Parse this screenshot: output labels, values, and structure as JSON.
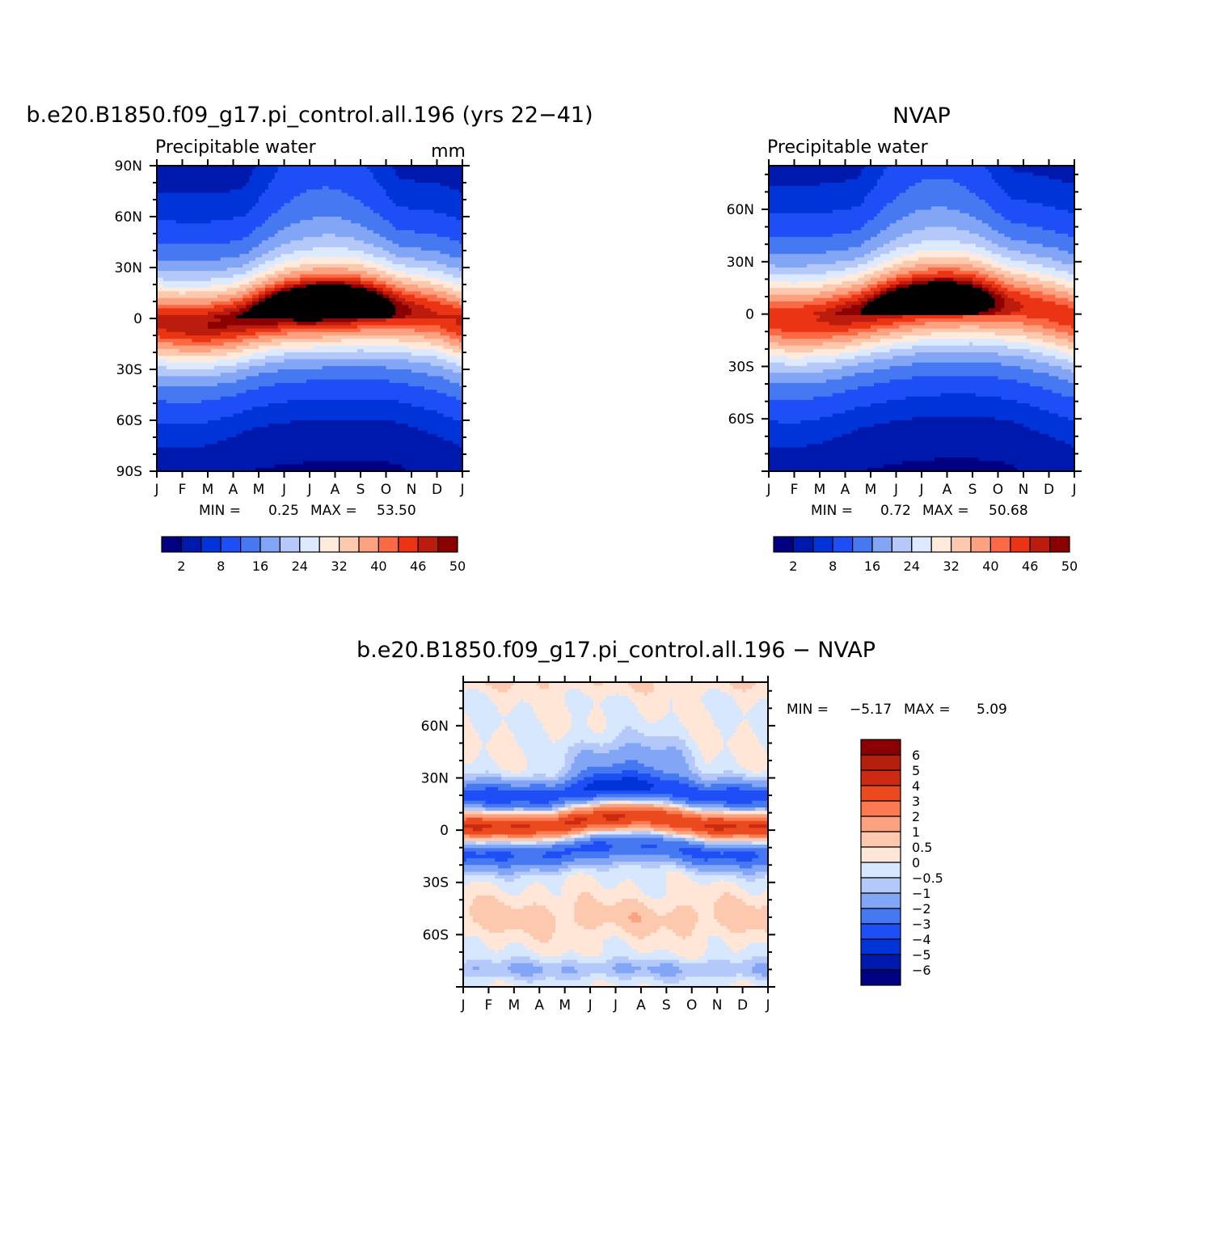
{
  "colors": {
    "pw_scale": [
      "#000080",
      "#0019ad",
      "#0034d9",
      "#1e4ef5",
      "#4678f2",
      "#82a5f5",
      "#b4c8fa",
      "#dce9ff",
      "#ffeadb",
      "#fcc8ae",
      "#fca281",
      "#fb6a45",
      "#ea3414",
      "#bb1c0d",
      "#8b0000"
    ],
    "diff_scale": [
      "#000080",
      "#0019ad",
      "#0034d9",
      "#1e4ef5",
      "#4678f2",
      "#82a5f5",
      "#b4c8fa",
      "#d7e7fd",
      "#ffe6d6",
      "#fcc8ae",
      "#fca281",
      "#fb7a4f",
      "#ea4a1e",
      "#cb2b10",
      "#b4200b",
      "#8b0000"
    ]
  },
  "chart_data": [
    {
      "type": "heatmap",
      "title": "b.e20.B1850.f09_g17.pi_control.all.196 (yrs 22-41)",
      "subtitle": "Precipitable water",
      "units": "mm",
      "x": [
        "J",
        "F",
        "M",
        "A",
        "M",
        "J",
        "J",
        "A",
        "S",
        "O",
        "N",
        "D",
        "J"
      ],
      "y_ticks": [
        "90N",
        "60N",
        "30N",
        "0",
        "30S",
        "60S",
        "90S"
      ],
      "ylim": [
        -90,
        90
      ],
      "min_label": "MIN =",
      "min_value": "0.25",
      "max_label": "MAX =",
      "max_value": "53.50",
      "stats": {
        "min": 0.25,
        "max": 53.5
      },
      "itcz_lat": [
        -3,
        -4,
        -4,
        -2,
        2,
        5,
        6,
        7,
        7,
        6,
        4,
        2,
        -3
      ],
      "itcz_max": [
        44,
        45,
        46,
        47,
        49,
        51,
        53,
        53,
        51,
        48,
        45,
        43,
        44
      ],
      "levels": [
        2,
        5,
        8,
        12,
        16,
        20,
        24,
        28,
        32,
        36,
        40,
        43,
        46,
        48,
        50
      ],
      "colorbar_labels": [
        "2",
        "8",
        "16",
        "24",
        "32",
        "40",
        "46",
        "50"
      ]
    },
    {
      "type": "heatmap",
      "title": "NVAP",
      "subtitle": "Precipitable water",
      "x": [
        "J",
        "F",
        "M",
        "A",
        "M",
        "J",
        "J",
        "A",
        "S",
        "O",
        "N",
        "D",
        "J"
      ],
      "y_ticks": [
        "60N",
        "30N",
        "0",
        "30S",
        "60S"
      ],
      "ylim": [
        -90,
        90
      ],
      "min_label": "MIN =",
      "min_value": "0.72",
      "max_label": "MAX =",
      "max_value": "50.68",
      "stats": {
        "min": 0.72,
        "max": 50.68
      },
      "itcz_lat": [
        -3,
        -4,
        -3,
        -1,
        2,
        5,
        7,
        8,
        8,
        6,
        4,
        1,
        -3
      ],
      "itcz_max": [
        42,
        43,
        44,
        46,
        47,
        48,
        48,
        48,
        47,
        45,
        43,
        42,
        42
      ],
      "levels": [
        2,
        5,
        8,
        12,
        16,
        20,
        24,
        28,
        32,
        36,
        40,
        43,
        46,
        48,
        50
      ],
      "colorbar_labels": [
        "2",
        "8",
        "16",
        "24",
        "32",
        "40",
        "46",
        "50"
      ]
    },
    {
      "type": "heatmap",
      "title": "b.e20.B1850.f09_g17.pi_control.all.196 - NVAP",
      "x": [
        "J",
        "F",
        "M",
        "A",
        "M",
        "J",
        "J",
        "A",
        "S",
        "O",
        "N",
        "D",
        "J"
      ],
      "y_ticks": [
        "60N",
        "30N",
        "0",
        "30S",
        "60S"
      ],
      "ylim": [
        -90,
        90
      ],
      "min_label": "MIN =",
      "min_value": "-5.17",
      "max_label": "MAX =",
      "max_value": "5.09",
      "stats": {
        "min": -5.17,
        "max": 5.09
      },
      "levels": [
        -6,
        -5,
        -4,
        -3,
        -2,
        -1,
        -0.5,
        0,
        0.5,
        1,
        2,
        3,
        4,
        5,
        6
      ],
      "colorbar_labels": [
        "6",
        "5",
        "4",
        "3",
        "2",
        "1",
        "0.5",
        "0",
        "-0.5",
        "-1",
        "-2",
        "-3",
        "-4",
        "-5",
        "-6"
      ]
    }
  ]
}
